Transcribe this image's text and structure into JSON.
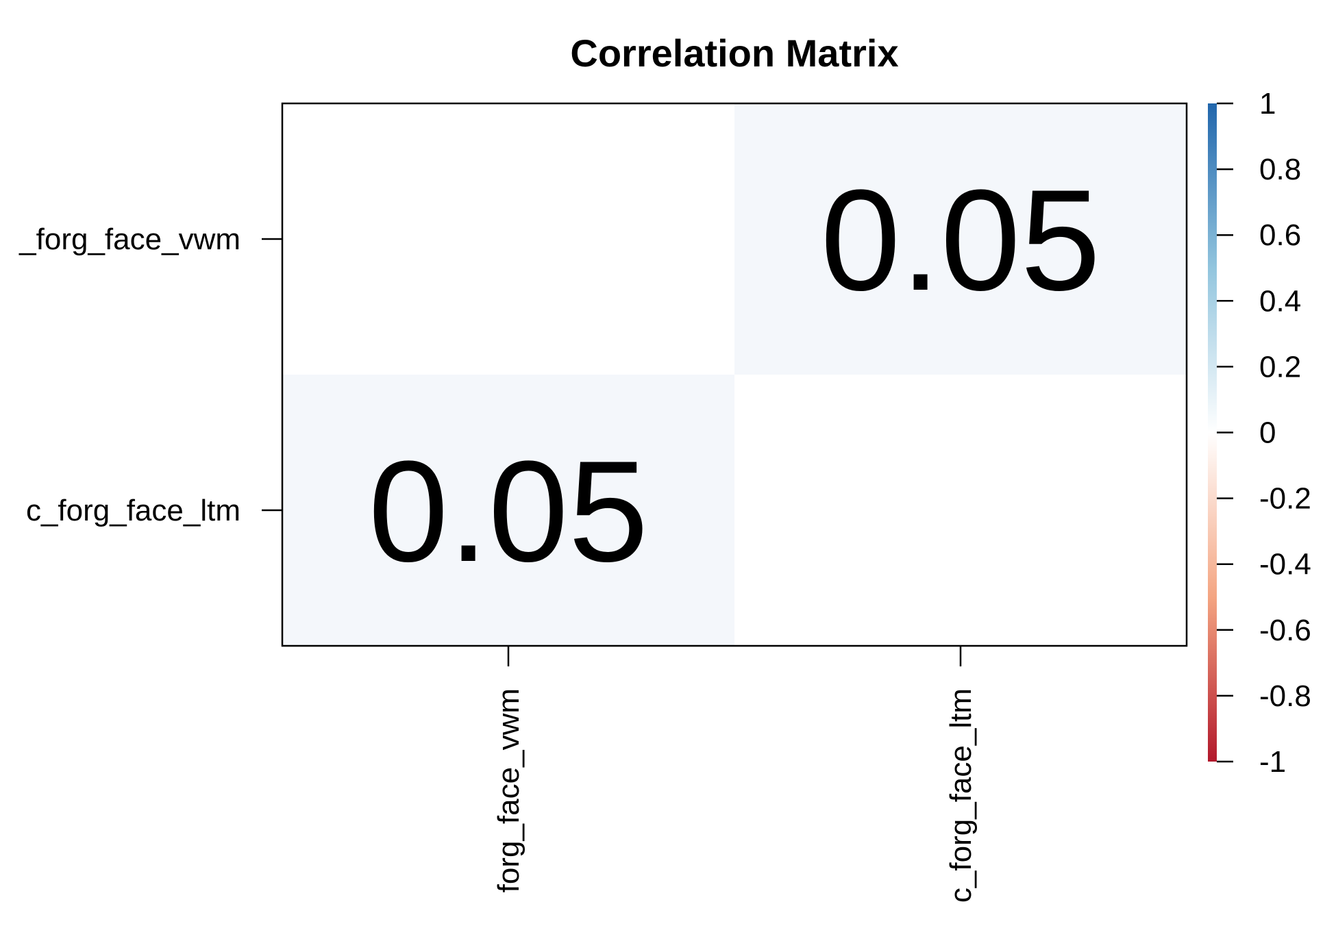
{
  "chart_data": {
    "type": "heatmap",
    "title": "Correlation Matrix",
    "row_labels": [
      "c_forg_face_vwm",
      "c_forg_face_ltm"
    ],
    "col_labels": [
      "c_forg_face_vwm",
      "c_forg_face_ltm"
    ],
    "row_labels_visible": [
      "_forg_face_vwm",
      "c_forg_face_ltm"
    ],
    "col_labels_visible": [
      "forg_face_vwm",
      "c_forg_face_ltm"
    ],
    "matrix": [
      [
        null,
        0.05
      ],
      [
        0.05,
        null
      ]
    ],
    "cell_text": [
      [
        "",
        "0.05"
      ],
      [
        "0.05",
        ""
      ]
    ],
    "colorbar": {
      "range": [
        -1,
        1
      ],
      "ticks": [
        1,
        0.8,
        0.6,
        0.4,
        0.2,
        0,
        -0.2,
        -0.4,
        -0.6,
        -0.8,
        -1
      ],
      "tick_labels": [
        "1",
        "0.8",
        "0.6",
        "0.4",
        "0.2",
        "0",
        "-0.2",
        "-0.4",
        "-0.6",
        "-0.8",
        "-1"
      ],
      "colors": {
        "negative": "#b2182b",
        "zero": "#ffffff",
        "positive": "#2166ac"
      }
    },
    "grid": false,
    "legend_placement": "right"
  }
}
